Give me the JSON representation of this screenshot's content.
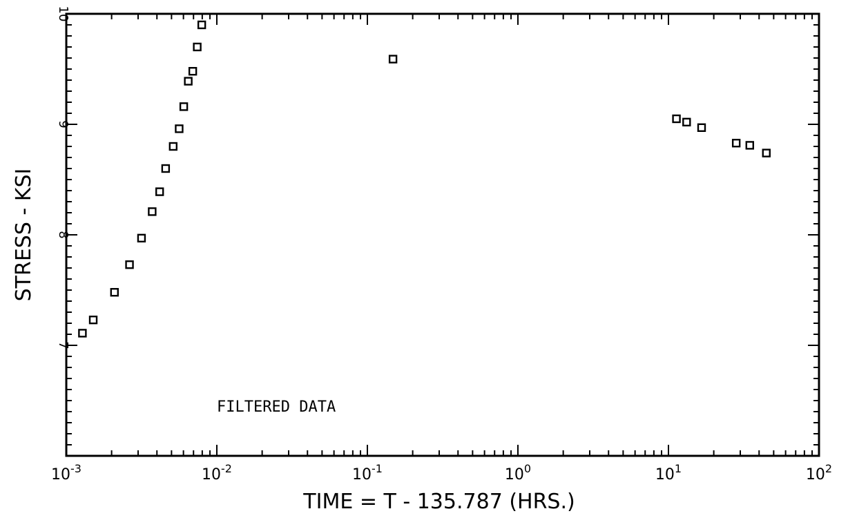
{
  "chart_data": {
    "type": "scatter",
    "xlabel": "TIME = T - 135.787 (HRS.)",
    "ylabel": "STRESS - KSI",
    "xscale": "log",
    "xlim": [
      0.001,
      100
    ],
    "ylim": [
      6,
      10
    ],
    "grid": false,
    "marker": "hollow-square",
    "x_ticks": [
      0.001,
      0.01,
      0.1,
      1,
      10,
      100
    ],
    "x_tick_labels": [
      {
        "base": "10",
        "exp": "-3"
      },
      {
        "base": "10",
        "exp": "-2"
      },
      {
        "base": "10",
        "exp": "-1"
      },
      {
        "base": "10",
        "exp": "0"
      },
      {
        "base": "10",
        "exp": "1"
      },
      {
        "base": "10",
        "exp": "2"
      }
    ],
    "y_ticks": [
      7,
      8,
      9,
      10
    ],
    "y_tick_labels": [
      "7",
      "8",
      "9",
      "10"
    ],
    "annotation": "FILTERED DATA",
    "points": [
      {
        "x": 0.00128,
        "y": 7.11
      },
      {
        "x": 0.00151,
        "y": 7.23
      },
      {
        "x": 0.00209,
        "y": 7.48
      },
      {
        "x": 0.00263,
        "y": 7.73
      },
      {
        "x": 0.00316,
        "y": 7.97
      },
      {
        "x": 0.00372,
        "y": 8.21
      },
      {
        "x": 0.00417,
        "y": 8.39
      },
      {
        "x": 0.00457,
        "y": 8.6
      },
      {
        "x": 0.00513,
        "y": 8.8
      },
      {
        "x": 0.00562,
        "y": 8.96
      },
      {
        "x": 0.00603,
        "y": 9.16
      },
      {
        "x": 0.00646,
        "y": 9.39
      },
      {
        "x": 0.00692,
        "y": 9.48
      },
      {
        "x": 0.00741,
        "y": 9.7
      },
      {
        "x": 0.00794,
        "y": 9.9
      },
      {
        "x": 0.148,
        "y": 9.59
      },
      {
        "x": 11.3,
        "y": 9.05
      },
      {
        "x": 13.2,
        "y": 9.02
      },
      {
        "x": 16.6,
        "y": 8.97
      },
      {
        "x": 28.2,
        "y": 8.83
      },
      {
        "x": 34.7,
        "y": 8.81
      },
      {
        "x": 44.7,
        "y": 8.74
      }
    ]
  }
}
